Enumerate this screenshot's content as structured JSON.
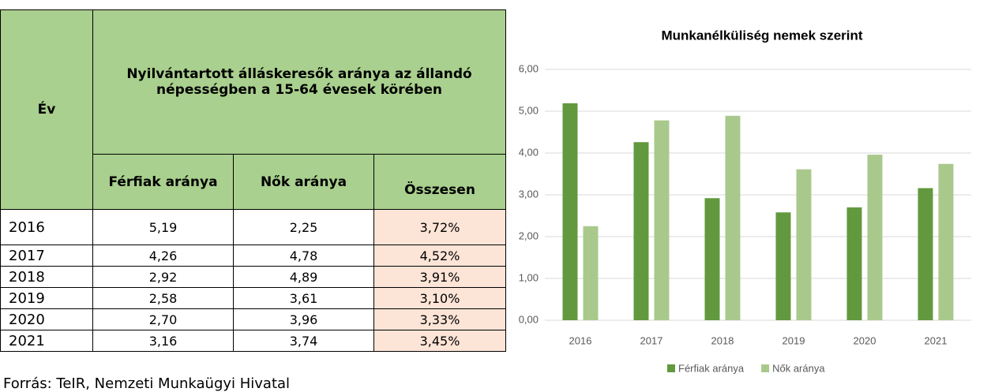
{
  "table": {
    "header": {
      "year": "Év",
      "title": "Nyilvántartott álláskeresők aránya az állandó népességben a 15-64 évesek körében",
      "columns": [
        "Férfiak aránya",
        "Nők aránya",
        "Összesen"
      ]
    },
    "rows": [
      [
        "2016",
        "5,19",
        "2,25",
        "3,72%"
      ],
      [
        "2017",
        "4,26",
        "4,78",
        "4,52%"
      ],
      [
        "2018",
        "2,92",
        "4,89",
        "3,91%"
      ],
      [
        "2019",
        "2,58",
        "3,61",
        "3,10%"
      ],
      [
        "2020",
        "2,70",
        "3,96",
        "3,33%"
      ],
      [
        "2021",
        "3,16",
        "3,74",
        "3,45%"
      ]
    ],
    "source": "Forrás: TeIR, Nemzeti Munkaügyi Hivatal"
  },
  "chart_data": {
    "type": "bar",
    "title": "Munkanélküliség nemek szerint",
    "categories": [
      "2016",
      "2017",
      "2018",
      "2019",
      "2020",
      "2021"
    ],
    "series": [
      {
        "name": "Férfiak aránya",
        "color": "#62993e",
        "values": [
          5.19,
          4.26,
          2.92,
          2.58,
          2.7,
          3.16
        ]
      },
      {
        "name": "Nők aránya",
        "color": "#a9c98c",
        "values": [
          2.25,
          4.78,
          4.89,
          3.61,
          3.96,
          3.74
        ]
      }
    ],
    "ylim": [
      0,
      6
    ],
    "yticks": [
      {
        "value": 0,
        "label": "0,00"
      },
      {
        "value": 1,
        "label": "1,00"
      },
      {
        "value": 2,
        "label": "2,00"
      },
      {
        "value": 3,
        "label": "3,00"
      },
      {
        "value": 4,
        "label": "4,00"
      },
      {
        "value": 5,
        "label": "5,00"
      },
      {
        "value": 6,
        "label": "6,00"
      }
    ],
    "grid": true,
    "legend": "bottom"
  }
}
